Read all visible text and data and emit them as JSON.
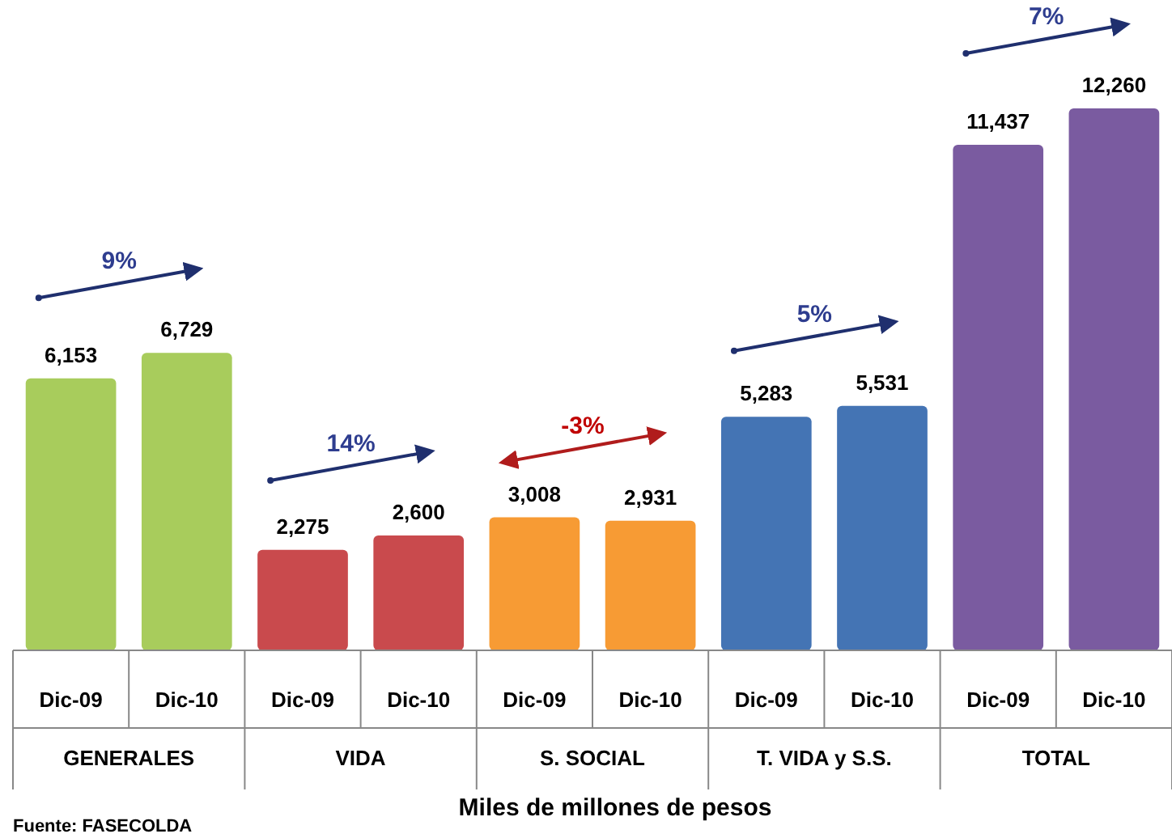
{
  "chart_data": {
    "type": "bar",
    "xlabel": "Miles de millones de pesos",
    "categories": [
      "Dic-09",
      "Dic-10",
      "Dic-09",
      "Dic-10",
      "Dic-09",
      "Dic-10",
      "Dic-09",
      "Dic-10",
      "Dic-09",
      "Dic-10"
    ],
    "values": [
      6153,
      6729,
      2275,
      2600,
      3008,
      2931,
      5283,
      5531,
      11437,
      12260
    ],
    "value_labels": [
      "6,153",
      "6,729",
      "2,275",
      "2,600",
      "3,008",
      "2,931",
      "5,283",
      "5,531",
      "11,437",
      "12,260"
    ],
    "colors": [
      "#a8cc5c",
      "#a8cc5c",
      "#c94a4d",
      "#c94a4d",
      "#f79b34",
      "#f79b34",
      "#4474b4",
      "#4474b4",
      "#7a5ba0",
      "#7a5ba0"
    ],
    "annotations": [
      "GENERALES",
      "VIDA",
      "S. SOCIAL",
      "T. VIDA y S.S.",
      "TOTAL",
      "9%",
      "14%",
      "-3%",
      "5%",
      "7%",
      "Fuente: FASECOLDA"
    ]
  }
}
